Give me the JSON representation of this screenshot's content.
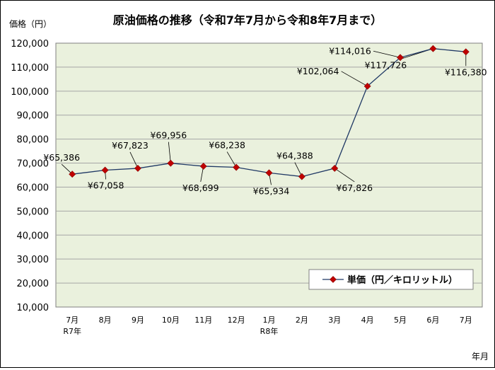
{
  "chart_data": {
    "type": "line",
    "title": "原油価格の推移（令和7年7月から令和8年7月まで）",
    "ylabel": "価格（円）",
    "xlabel": "年月",
    "ylim": [
      10000,
      120000
    ],
    "yticks": [
      "10,000",
      "20,000",
      "30,000",
      "40,000",
      "50,000",
      "60,000",
      "70,000",
      "80,000",
      "90,000",
      "100,000",
      "110,000",
      "120,000"
    ],
    "categories": [
      "7月",
      "8月",
      "9月",
      "10月",
      "11月",
      "12月",
      "1月",
      "2月",
      "3月",
      "4月",
      "5月",
      "6月",
      "7月"
    ],
    "category_sublabels": [
      "R7年",
      "",
      "",
      "",
      "",
      "",
      "R8年",
      "",
      "",
      "",
      "",
      "",
      ""
    ],
    "series": [
      {
        "name": "単価（円／キロリットル）",
        "values": [
          65386,
          67058,
          67823,
          69956,
          68699,
          68238,
          65934,
          64388,
          67826,
          102064,
          114016,
          117726,
          116380
        ],
        "labels": [
          "¥65,386",
          "¥67,058",
          "¥67,823",
          "¥69,956",
          "¥68,699",
          "¥68,238",
          "¥65,934",
          "¥64,388",
          "¥67,826",
          "¥102,064",
          "¥114,016",
          "¥117,726",
          "¥116,380"
        ]
      }
    ],
    "grid": true,
    "legend": "bottom-right",
    "colors": {
      "plot_bg": "#eaf1dd",
      "line": "#1f3864",
      "marker": "#c00000",
      "grid": "#a6a6a6"
    }
  }
}
